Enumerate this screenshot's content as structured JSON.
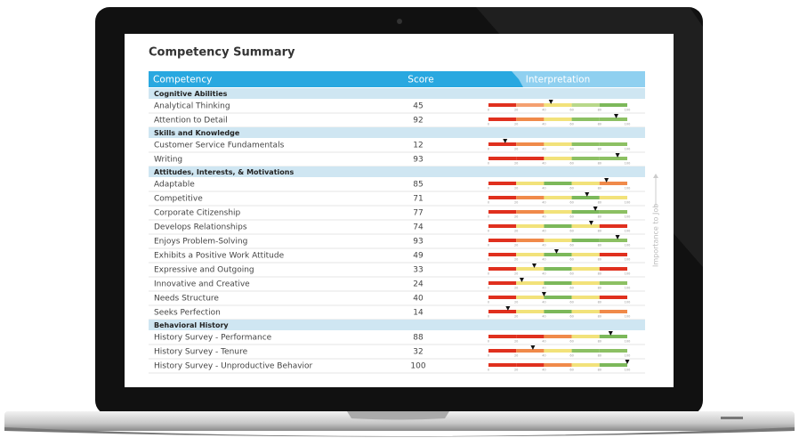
{
  "title": "Competency Summary",
  "header": {
    "competency": "Competency",
    "score": "Score",
    "interpretation": "Interpretation"
  },
  "side_label": "Importance to Job",
  "scale_ticks": [
    0,
    20,
    40,
    60,
    80,
    100
  ],
  "sections": [
    {
      "title": "Cognitive Abilities",
      "rows": [
        {
          "name": "Analytical Thinking",
          "score": 45,
          "bands": [
            "#e0301e",
            "#f4a070",
            "#f2e27a",
            "#b8d88a",
            "#7cb85a"
          ]
        },
        {
          "name": "Attention to Detail",
          "score": 92,
          "bands": [
            "#e0301e",
            "#f08a4a",
            "#f2e27a",
            "#8cc063",
            "#8cc063"
          ]
        }
      ]
    },
    {
      "title": "Skills and Knowledge",
      "rows": [
        {
          "name": "Customer Service Fundamentals",
          "score": 12,
          "bands": [
            "#e0301e",
            "#f08a4a",
            "#f2e27a",
            "#8cc063",
            "#8cc063"
          ]
        },
        {
          "name": "Writing",
          "score": 93,
          "bands": [
            "#e0301e",
            "#e0301e",
            "#f2e27a",
            "#8cc063",
            "#8cc063"
          ]
        }
      ]
    },
    {
      "title": "Attitudes, Interests, & Motivations",
      "rows": [
        {
          "name": "Adaptable",
          "score": 85,
          "bands": [
            "#e0301e",
            "#f2e27a",
            "#7cb85a",
            "#f2e27a",
            "#f08a4a"
          ]
        },
        {
          "name": "Competitive",
          "score": 71,
          "bands": [
            "#e0301e",
            "#f08a4a",
            "#f2e27a",
            "#7cb85a",
            "#f2e27a"
          ]
        },
        {
          "name": "Corporate Citizenship",
          "score": 77,
          "bands": [
            "#e0301e",
            "#f08a4a",
            "#f2e27a",
            "#7cb85a",
            "#8cc063"
          ]
        },
        {
          "name": "Develops Relationships",
          "score": 74,
          "bands": [
            "#e0301e",
            "#f2e27a",
            "#7cb85a",
            "#f2e27a",
            "#e0301e"
          ]
        },
        {
          "name": "Enjoys Problem-Solving",
          "score": 93,
          "bands": [
            "#e0301e",
            "#f08a4a",
            "#f2e27a",
            "#7cb85a",
            "#8cc063"
          ]
        },
        {
          "name": "Exhibits a Positive Work Attitude",
          "score": 49,
          "bands": [
            "#e0301e",
            "#f2e27a",
            "#7cb85a",
            "#f2e27a",
            "#e0301e"
          ]
        },
        {
          "name": "Expressive and Outgoing",
          "score": 33,
          "bands": [
            "#e0301e",
            "#f2e27a",
            "#7cb85a",
            "#f2e27a",
            "#e0301e"
          ]
        },
        {
          "name": "Innovative and Creative",
          "score": 24,
          "bands": [
            "#e0301e",
            "#f2e27a",
            "#7cb85a",
            "#f2e27a",
            "#8cc063"
          ]
        },
        {
          "name": "Needs Structure",
          "score": 40,
          "bands": [
            "#e0301e",
            "#f2e27a",
            "#7cb85a",
            "#f2e27a",
            "#e0301e"
          ]
        },
        {
          "name": "Seeks Perfection",
          "score": 14,
          "bands": [
            "#e0301e",
            "#f2e27a",
            "#7cb85a",
            "#f2e27a",
            "#f08a4a"
          ]
        }
      ]
    },
    {
      "title": "Behavioral History",
      "rows": [
        {
          "name": "History Survey - Performance",
          "score": 88,
          "bands": [
            "#e0301e",
            "#e0301e",
            "#f08a4a",
            "#f2e27a",
            "#7cb85a"
          ]
        },
        {
          "name": "History Survey - Tenure",
          "score": 32,
          "bands": [
            "#e0301e",
            "#f08a4a",
            "#f2e27a",
            "#8cc063",
            "#8cc063"
          ]
        },
        {
          "name": "History Survey - Unproductive Behavior",
          "score": 100,
          "bands": [
            "#e0301e",
            "#e0301e",
            "#f08a4a",
            "#f2e27a",
            "#7cb85a"
          ]
        }
      ]
    }
  ]
}
